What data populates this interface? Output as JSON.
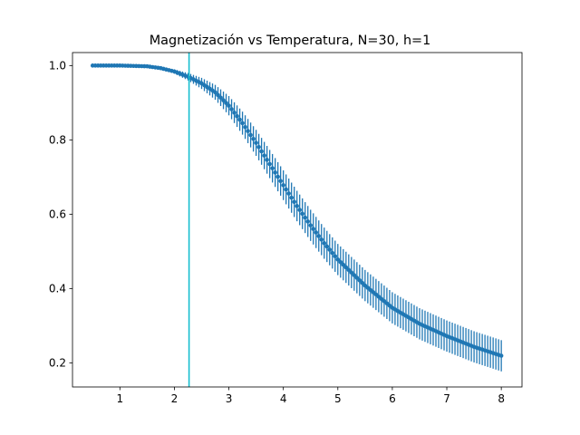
{
  "chart_data": {
    "type": "scatter",
    "title": "Magnetización vs Temperatura, N=30, h=1",
    "xlabel": "",
    "ylabel": "",
    "xlim": [
      0.13,
      8.38
    ],
    "ylim": [
      0.135,
      1.035
    ],
    "xticks": [
      1,
      2,
      3,
      4,
      5,
      6,
      7,
      8
    ],
    "yticks": [
      0.2,
      0.4,
      0.6,
      0.8,
      1.0
    ],
    "ytick_labels": [
      "0.2",
      "0.4",
      "0.6",
      "0.8",
      "1.0"
    ],
    "grid": false,
    "x_range": [
      0.5,
      8.0
    ],
    "n_points": 151,
    "series": [
      {
        "color": "#1f77b4",
        "marker": ".",
        "error_bars": true,
        "points": [
          [
            0.5,
            1.0,
            0.0
          ],
          [
            1.0,
            1.0,
            0.0
          ],
          [
            1.5,
            0.998,
            0.001
          ],
          [
            1.75,
            0.993,
            0.003
          ],
          [
            2.0,
            0.984,
            0.006
          ],
          [
            2.25,
            0.97,
            0.01
          ],
          [
            2.5,
            0.952,
            0.015
          ],
          [
            2.75,
            0.928,
            0.02
          ],
          [
            3.0,
            0.892,
            0.026
          ],
          [
            3.25,
            0.845,
            0.031
          ],
          [
            3.5,
            0.792,
            0.035
          ],
          [
            3.75,
            0.735,
            0.038
          ],
          [
            4.0,
            0.678,
            0.04
          ],
          [
            4.25,
            0.622,
            0.041
          ],
          [
            4.5,
            0.57,
            0.042
          ],
          [
            4.75,
            0.522,
            0.042
          ],
          [
            5.0,
            0.478,
            0.042
          ],
          [
            5.5,
            0.408,
            0.042
          ],
          [
            6.0,
            0.348,
            0.042
          ],
          [
            6.5,
            0.305,
            0.042
          ],
          [
            7.0,
            0.272,
            0.042
          ],
          [
            7.5,
            0.243,
            0.042
          ],
          [
            8.0,
            0.219,
            0.042
          ]
        ]
      }
    ],
    "vline": {
      "x": 2.269,
      "color": "#17becf"
    }
  }
}
